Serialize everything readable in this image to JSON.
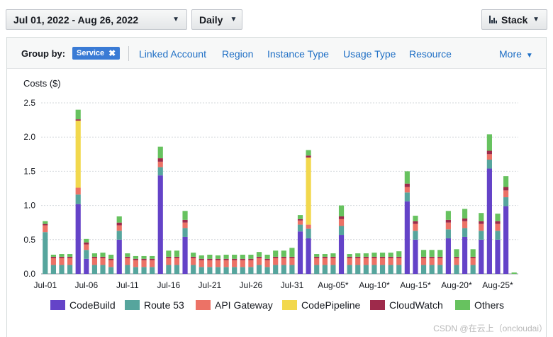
{
  "controls": {
    "date_range": "Jul 01, 2022 - Aug 26, 2022",
    "granularity": "Daily",
    "stack": "Stack"
  },
  "group_by": {
    "label": "Group by:",
    "chip": "Service",
    "links": [
      "Linked Account",
      "Region",
      "Instance Type",
      "Usage Type",
      "Resource"
    ],
    "more": "More"
  },
  "watermark": "CSDN @在云上（oncloudai）",
  "chart_data": {
    "type": "bar",
    "stacked": true,
    "ylabel": "Costs ($)",
    "ylim": [
      0,
      2.5
    ],
    "yticks": [
      "0.0",
      "0.5",
      "1.0",
      "1.5",
      "2.0",
      "2.5"
    ],
    "grid": true,
    "legend_position": "bottom",
    "x_tick_labels": [
      {
        "index": 0,
        "label": "Jul-01"
      },
      {
        "index": 5,
        "label": "Jul-06"
      },
      {
        "index": 10,
        "label": "Jul-11"
      },
      {
        "index": 15,
        "label": "Jul-16"
      },
      {
        "index": 20,
        "label": "Jul-21"
      },
      {
        "index": 25,
        "label": "Jul-26"
      },
      {
        "index": 30,
        "label": "Jul-31"
      },
      {
        "index": 35,
        "label": "Aug-05*"
      },
      {
        "index": 40,
        "label": "Aug-10*"
      },
      {
        "index": 45,
        "label": "Aug-15*"
      },
      {
        "index": 50,
        "label": "Aug-20*"
      },
      {
        "index": 55,
        "label": "Aug-25*"
      }
    ],
    "series": [
      {
        "name": "CodeBuild",
        "color": "#6443c8",
        "values": [
          0,
          0,
          0,
          0,
          1.02,
          0.22,
          0,
          0,
          0,
          0.5,
          0,
          0,
          0,
          0,
          1.44,
          0,
          0,
          0.54,
          0,
          0,
          0,
          0,
          0,
          0,
          0,
          0,
          0,
          0,
          0,
          0,
          0,
          0.62,
          0.52,
          0,
          0,
          0,
          0.57,
          0,
          0,
          0,
          0,
          0,
          0,
          0,
          1.06,
          0.5,
          0,
          0,
          0,
          0.52,
          0,
          0.54,
          0,
          0.5,
          1.54,
          0.5,
          0.99,
          0
        ]
      },
      {
        "name": "Route 53",
        "color": "#56a59d",
        "values": [
          0.61,
          0.13,
          0.13,
          0.13,
          0.14,
          0.13,
          0.13,
          0.13,
          0.1,
          0.13,
          0.13,
          0.1,
          0.1,
          0.1,
          0.12,
          0.13,
          0.13,
          0.13,
          0.13,
          0.1,
          0.1,
          0.1,
          0.1,
          0.1,
          0.1,
          0.1,
          0.13,
          0.1,
          0.13,
          0.13,
          0.13,
          0.1,
          0.14,
          0.13,
          0.13,
          0.13,
          0.13,
          0.13,
          0.13,
          0.13,
          0.13,
          0.13,
          0.13,
          0.13,
          0.13,
          0.13,
          0.13,
          0.13,
          0.13,
          0.13,
          0.13,
          0.13,
          0.13,
          0.13,
          0.13,
          0.13,
          0.13,
          0.0
        ]
      },
      {
        "name": "API Gateway",
        "color": "#ec7266",
        "values": [
          0.1,
          0.1,
          0.1,
          0.1,
          0.1,
          0.08,
          0.1,
          0.1,
          0.1,
          0.08,
          0.1,
          0.1,
          0.1,
          0.1,
          0.08,
          0.1,
          0.1,
          0.08,
          0.1,
          0.1,
          0.1,
          0.1,
          0.1,
          0.1,
          0.1,
          0.1,
          0.1,
          0.1,
          0.1,
          0.1,
          0.1,
          0.06,
          0.06,
          0.1,
          0.1,
          0.1,
          0.1,
          0.1,
          0.1,
          0.1,
          0.1,
          0.1,
          0.1,
          0.1,
          0.08,
          0.1,
          0.1,
          0.1,
          0.1,
          0.1,
          0.1,
          0.1,
          0.1,
          0.1,
          0.08,
          0.1,
          0.1,
          0.0
        ]
      },
      {
        "name": "CodePipeline",
        "color": "#f2d84d",
        "values": [
          0,
          0,
          0,
          0,
          0.98,
          0,
          0,
          0,
          0,
          0,
          0,
          0,
          0,
          0,
          0,
          0,
          0,
          0,
          0,
          0,
          0,
          0,
          0,
          0,
          0,
          0,
          0,
          0,
          0,
          0,
          0,
          0,
          0.98,
          0,
          0,
          0,
          0,
          0,
          0,
          0,
          0,
          0,
          0,
          0,
          0,
          0,
          0,
          0,
          0,
          0,
          0,
          0,
          0,
          0,
          0,
          0,
          0,
          0
        ]
      },
      {
        "name": "CloudWatch",
        "color": "#9e2a4b",
        "values": [
          0.02,
          0.02,
          0.02,
          0.02,
          0.02,
          0.03,
          0.02,
          0.02,
          0.02,
          0.04,
          0.02,
          0.02,
          0.02,
          0.02,
          0.05,
          0.02,
          0.02,
          0.04,
          0.02,
          0.02,
          0.02,
          0.02,
          0.02,
          0.02,
          0.02,
          0.02,
          0.02,
          0.02,
          0.02,
          0.02,
          0.02,
          0.02,
          0.03,
          0.02,
          0.02,
          0.02,
          0.04,
          0.02,
          0.02,
          0.02,
          0.02,
          0.02,
          0.02,
          0.02,
          0.05,
          0.04,
          0.02,
          0.02,
          0.02,
          0.04,
          0.02,
          0.04,
          0.02,
          0.04,
          0.05,
          0.04,
          0.05,
          0.0
        ]
      },
      {
        "name": "Others",
        "color": "#67c25f",
        "values": [
          0.04,
          0.03,
          0.04,
          0.04,
          0.14,
          0.05,
          0.05,
          0.06,
          0.06,
          0.09,
          0.05,
          0.04,
          0.04,
          0.04,
          0.17,
          0.09,
          0.09,
          0.13,
          0.06,
          0.05,
          0.06,
          0.05,
          0.06,
          0.06,
          0.06,
          0.06,
          0.07,
          0.06,
          0.09,
          0.09,
          0.13,
          0.06,
          0.08,
          0.04,
          0.04,
          0.05,
          0.16,
          0.04,
          0.05,
          0.05,
          0.06,
          0.06,
          0.06,
          0.08,
          0.18,
          0.08,
          0.1,
          0.1,
          0.1,
          0.13,
          0.11,
          0.14,
          0.11,
          0.12,
          0.24,
          0.11,
          0.16,
          0.02
        ]
      }
    ]
  }
}
